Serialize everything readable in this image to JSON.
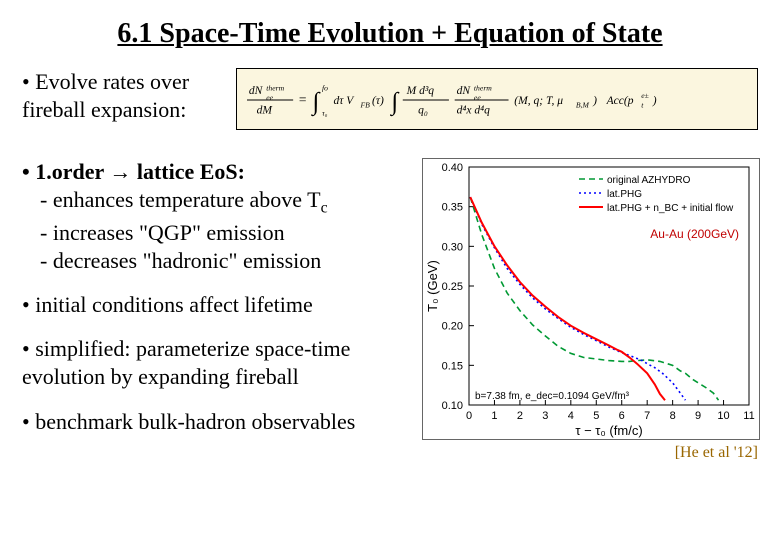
{
  "title": "6.1 Space-Time Evolution + Equation of State",
  "bullet_evolve": "• Evolve rates over fireball expansion:",
  "formula_tex": "dN_ee^therm/dM = ∫_{τ0}^{fo} dτ V_FB(τ) ∫ (M d³q / q0) (dN_ee^therm / d⁴x d⁴q)(M, q; T, μ_{B,M}) · Acc(p_t^{e±})",
  "bullets": {
    "b1_head": "• 1.order → lattice EoS:",
    "b1_l1": "- enhances temperature above T",
    "b1_tc_sub": "c",
    "b1_l2": "- increases \"QGP\" emission",
    "b1_l3": "- decreases \"hadronic\" emission",
    "b2": "• initial conditions affect lifetime",
    "b3": "• simplified: parameterize space-time evolution by expanding fireball",
    "b4": "• benchmark bulk-hadron observables"
  },
  "chart": {
    "type": "line",
    "xlabel": "τ − τ₀ (fm/c)",
    "ylabel": "T₀ (GeV)",
    "xlim": [
      0,
      11
    ],
    "xtick_step": 1,
    "ylim": [
      0.1,
      0.4
    ],
    "ytick_step": 0.05,
    "grid": false,
    "background_color": "#ffffff",
    "axis_color": "#000000",
    "annotation_text": "b=7.38 fm, e_dec=0.1094 GeV/fm³",
    "legend": {
      "position": "top-right-inside",
      "items": [
        {
          "label": "original AZHYDRO",
          "color": "#009933",
          "dash": "6,4",
          "width": 1.6
        },
        {
          "label": "lat.PHG",
          "color": "#0000ff",
          "dash": "2,3",
          "width": 1.6
        },
        {
          "label": "lat.PHG + n_BC + initial flow",
          "color": "#ff0000",
          "dash": "none",
          "width": 2.0
        }
      ]
    },
    "series": [
      {
        "name": "original AZHYDRO",
        "color": "#009933",
        "dash": "6,4",
        "width": 1.6,
        "x": [
          0.05,
          0.5,
          1.0,
          1.5,
          2.0,
          2.5,
          3.0,
          3.5,
          4.0,
          4.5,
          5.0,
          5.5,
          6.0,
          6.3,
          6.6,
          7.0,
          7.5,
          8.0,
          8.3,
          8.5,
          8.8,
          9.0,
          9.3,
          9.6,
          9.8
        ],
        "y": [
          0.362,
          0.315,
          0.272,
          0.241,
          0.219,
          0.201,
          0.187,
          0.174,
          0.165,
          0.16,
          0.158,
          0.156,
          0.155,
          0.155,
          0.156,
          0.157,
          0.155,
          0.15,
          0.143,
          0.14,
          0.132,
          0.128,
          0.122,
          0.115,
          0.106
        ]
      },
      {
        "name": "lat.PHG",
        "color": "#0000ff",
        "dash": "2,3",
        "width": 1.6,
        "x": [
          0.05,
          0.5,
          1.0,
          1.5,
          2.0,
          2.5,
          3.0,
          3.5,
          4.0,
          4.5,
          5.0,
          5.5,
          6.0,
          6.5,
          6.8,
          7.0,
          7.3,
          7.6,
          8.0,
          8.3,
          8.5
        ],
        "y": [
          0.362,
          0.328,
          0.298,
          0.272,
          0.252,
          0.235,
          0.221,
          0.209,
          0.198,
          0.189,
          0.181,
          0.173,
          0.166,
          0.16,
          0.156,
          0.152,
          0.147,
          0.14,
          0.128,
          0.115,
          0.106
        ]
      },
      {
        "name": "lat.PHG + nBC + initial flow",
        "color": "#ff0000",
        "dash": "none",
        "width": 2.0,
        "x": [
          0.05,
          0.5,
          1.0,
          1.5,
          2.0,
          2.5,
          3.0,
          3.5,
          4.0,
          4.5,
          5.0,
          5.5,
          5.8,
          6.0,
          6.3,
          6.6,
          7.0,
          7.3,
          7.5,
          7.7
        ],
        "y": [
          0.362,
          0.33,
          0.3,
          0.276,
          0.255,
          0.238,
          0.224,
          0.211,
          0.2,
          0.191,
          0.183,
          0.175,
          0.17,
          0.167,
          0.16,
          0.152,
          0.14,
          0.126,
          0.114,
          0.106
        ]
      }
    ]
  },
  "right_annotations": {
    "auau": "Au-Au (200GeV)",
    "auau_color": "#c00000",
    "citation": "[He et al '12]",
    "citation_color": "#996600"
  }
}
